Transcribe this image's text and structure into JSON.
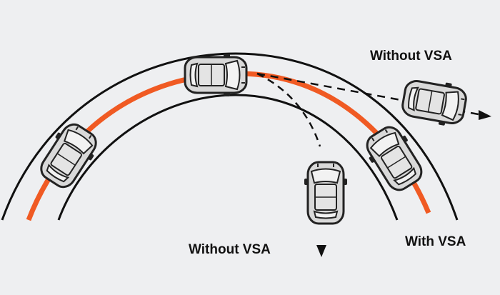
{
  "colors": {
    "background": "#eeeff1",
    "road_edge": "#111111",
    "vsa_path": "#f05a23",
    "car_body": "#d9d9d9",
    "car_glass": "#f2f2f2",
    "car_outline": "#222222"
  },
  "labels": {
    "without_vsa_oversteer": "Without VSA",
    "without_vsa_understeer": "Without VSA",
    "with_vsa": "With VSA"
  },
  "icons": {
    "car": "car-top-view-icon",
    "arrow": "arrowhead-icon"
  }
}
